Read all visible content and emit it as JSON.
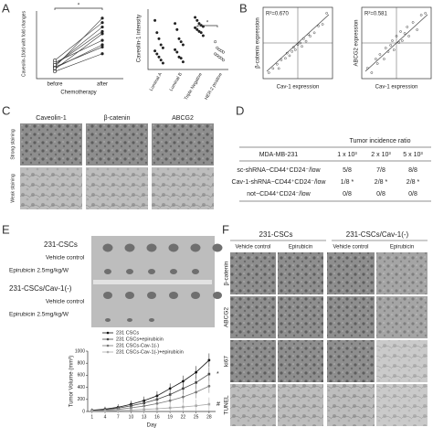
{
  "panel_labels": [
    "A",
    "B",
    "C",
    "D",
    "E",
    "F"
  ],
  "panel_a": {
    "paired": {
      "ylabel": "Caveolin-1fold with fold changes",
      "categories": [
        "before",
        "after"
      ],
      "xlabel": "Chemotherapy",
      "significance": "*",
      "before": [
        1.0,
        1.1,
        0.9,
        1.2,
        1.0,
        0.8,
        1.1,
        1.3,
        0.95
      ],
      "after": [
        3.2,
        2.8,
        2.5,
        2.2,
        1.9,
        1.6,
        2.6,
        3.0,
        2.0
      ]
    },
    "groups": {
      "ylabel": "Caveolin-1 intensity",
      "categories": [
        "Luminal A",
        "Luminal B",
        "Triple Negative",
        "HER-2 positive"
      ],
      "significance": "*",
      "values": [
        [
          0.9,
          0.7,
          0.6,
          0.5,
          0.45,
          0.4,
          0.35,
          0.3,
          0.25,
          0.2
        ],
        [
          0.85,
          0.75,
          0.6,
          0.55,
          0.5,
          0.42,
          0.38,
          0.3,
          0.28,
          0.22
        ],
        [
          0.95,
          0.9,
          0.85,
          0.82,
          0.8,
          0.78,
          0.75,
          0.72,
          0.7,
          0.65
        ],
        [
          0.55,
          0.45,
          0.42,
          0.4,
          0.38,
          0.35,
          0.33,
          0.3,
          0.28,
          0.25
        ]
      ]
    }
  },
  "panel_b": {
    "plots": [
      {
        "annotation": "R²=0.670",
        "xlabel": "Cav-1 expression",
        "ylabel": "β-catenin expression",
        "x": [
          0.1,
          0.15,
          0.2,
          0.22,
          0.25,
          0.3,
          0.32,
          0.35,
          0.38,
          0.4,
          0.42,
          0.45,
          0.48,
          0.5,
          0.52,
          0.55,
          0.58,
          0.6,
          0.65,
          0.7,
          0.75,
          0.8
        ],
        "y": [
          0.15,
          0.2,
          0.25,
          0.2,
          0.3,
          0.32,
          0.38,
          0.35,
          0.4,
          0.45,
          0.42,
          0.48,
          0.5,
          0.46,
          0.55,
          0.52,
          0.6,
          0.58,
          0.62,
          0.7,
          0.72,
          0.85
        ]
      },
      {
        "annotation": "R²=0.581",
        "xlabel": "Cav-1 expression",
        "ylabel": "ABCG2 expression",
        "x": [
          0.1,
          0.15,
          0.2,
          0.22,
          0.25,
          0.3,
          0.32,
          0.35,
          0.38,
          0.4,
          0.42,
          0.45,
          0.48,
          0.5,
          0.52,
          0.55,
          0.58,
          0.6,
          0.65,
          0.7,
          0.75,
          0.8
        ],
        "y": [
          0.2,
          0.15,
          0.3,
          0.25,
          0.35,
          0.3,
          0.42,
          0.38,
          0.45,
          0.5,
          0.4,
          0.55,
          0.48,
          0.6,
          0.5,
          0.58,
          0.65,
          0.55,
          0.7,
          0.62,
          0.78,
          0.8
        ]
      }
    ]
  },
  "panel_c": {
    "columns": [
      "Caveolin-1",
      "β-catenin",
      "ABCG2"
    ],
    "rows": [
      "Strong staining",
      "Weak staining"
    ]
  },
  "panel_d": {
    "title": "Tumor incidence ratio",
    "header": [
      "MDA-MB-231",
      "1 x 10³",
      "2 x 10³",
      "5 x 10³"
    ],
    "rows": [
      [
        "sc-shRNA−CD44⁺CD24⁻/low",
        "5/8",
        "7/8",
        "8/8"
      ],
      [
        "Cav-1-shRNA−CD44⁺CD24⁻/low",
        "1/8 *",
        "2/8 *",
        "2/8 *"
      ],
      [
        "not−CD44⁺CD24⁻/low",
        "0/8",
        "0/8",
        "0/8"
      ]
    ]
  },
  "panel_e": {
    "groups": [
      {
        "title": "231-CSCs",
        "rows": [
          "Vehicle control",
          "Epirubicin 2.5mg/kg/W"
        ]
      },
      {
        "title": "231-CSCs/Cav-1(-)",
        "rows": [
          "Vehicle control",
          "Epirubicin 2.5mg/kg/W"
        ]
      }
    ],
    "chart": {
      "type": "line",
      "xlabel": "Day",
      "ylabel": "Tumor Volume (mm³)",
      "x": [
        1,
        4,
        7,
        10,
        13,
        16,
        19,
        22,
        25,
        28
      ],
      "xlim": [
        0,
        29.5
      ],
      "xticks": [
        1,
        4,
        7,
        10,
        13,
        16,
        19,
        22,
        25,
        28
      ],
      "ylim": [
        0,
        1000
      ],
      "yticks": [
        0,
        200,
        400,
        600,
        800,
        1000
      ],
      "series": [
        {
          "name": "231 CSCs",
          "color": "#111111",
          "values": [
            20,
            40,
            70,
            120,
            180,
            260,
            380,
            500,
            650,
            850
          ]
        },
        {
          "name": "231 CSCs+epirubicin",
          "color": "#444444",
          "values": [
            15,
            30,
            55,
            95,
            140,
            200,
            280,
            380,
            480,
            620
          ]
        },
        {
          "name": "231 CSCs-Cav-1(-)",
          "color": "#777777",
          "values": [
            10,
            20,
            35,
            60,
            90,
            130,
            180,
            240,
            320,
            420
          ]
        },
        {
          "name": "231 CSCs-Cav-1(-)+epirubicin",
          "color": "#aaaaaa",
          "values": [
            5,
            10,
            15,
            25,
            35,
            45,
            60,
            75,
            95,
            120
          ]
        }
      ],
      "annotations": [
        "*",
        "#"
      ]
    }
  },
  "panel_f": {
    "groups": [
      "231-CSCs",
      "231-CSCs/Cav-1(-)"
    ],
    "columns": [
      "Vehicle control",
      "Epirubicin",
      "Vehicle control",
      "Epirubicin"
    ],
    "rows": [
      "β-catenin",
      "ABCG2",
      "ki67",
      "TUNEL"
    ]
  }
}
